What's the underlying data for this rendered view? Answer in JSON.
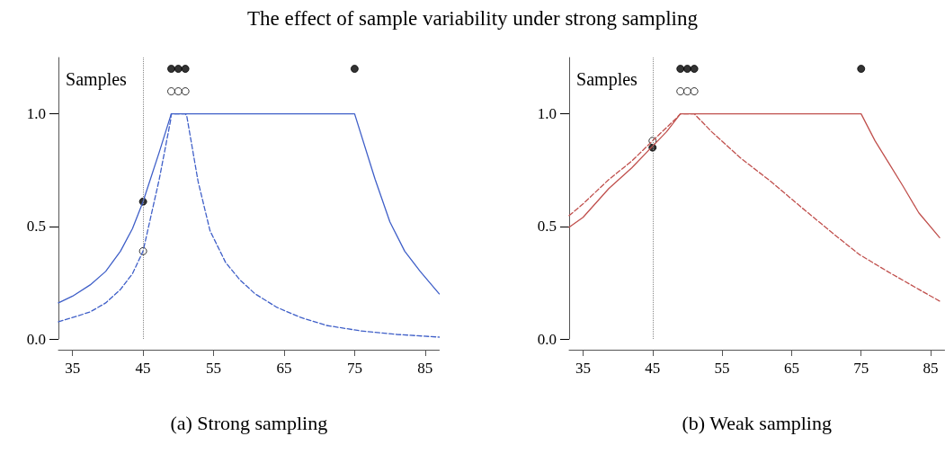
{
  "chart_data": [
    {
      "type": "line",
      "title": "The effect of sample variability under strong sampling",
      "xlabel": "(a) Strong sampling",
      "xlim": [
        33,
        87
      ],
      "xticks": [
        35,
        45,
        55,
        65,
        75,
        85
      ],
      "ylim": [
        0,
        1.25
      ],
      "yticks": [
        {
          "value": 0,
          "label": "0.0"
        },
        {
          "value": 0.5,
          "label": "0.5"
        },
        {
          "value": 1,
          "label": "1.0"
        }
      ],
      "grid": false,
      "annotations": [
        "Samples"
      ],
      "ref_lines": [
        {
          "axis": "x",
          "value": 45,
          "color": "#888888",
          "line_style": "dotted"
        }
      ],
      "series": [
        {
          "line_style": "solid",
          "color": "#3f5fc8",
          "x": [
            33,
            35,
            37.5,
            39.7,
            41.8,
            43.5,
            45,
            47.3,
            49,
            75,
            77.9,
            80,
            82.1,
            84.3,
            87
          ],
          "values": [
            0.16,
            0.19,
            0.24,
            0.3,
            0.39,
            0.49,
            0.61,
            0.83,
            1,
            1,
            0.71,
            0.52,
            0.39,
            0.3,
            0.2
          ]
        },
        {
          "line_style": "dashed",
          "color": "#3f5fc8",
          "x": [
            33,
            35,
            37.5,
            39.7,
            41.8,
            43.5,
            45,
            47.3,
            48.9,
            49,
            51,
            51.2,
            52.8,
            54.5,
            56.7,
            58.8,
            60.9,
            64,
            67.3,
            71,
            75.8,
            81,
            87
          ],
          "values": [
            0.076,
            0.095,
            0.12,
            0.16,
            0.22,
            0.29,
            0.39,
            0.71,
            0.97,
            1,
            1,
            0.99,
            0.7,
            0.48,
            0.34,
            0.26,
            0.2,
            0.14,
            0.096,
            0.06,
            0.036,
            0.02,
            0.008
          ]
        },
        {
          "type": "scatter",
          "marker": "circle",
          "color": "#000000",
          "x": [
            45
          ],
          "values": [
            0.61
          ]
        },
        {
          "type": "scatter",
          "marker": "circle",
          "color": "#ffffff",
          "x": [
            45
          ],
          "values": [
            0.39
          ]
        },
        {
          "type": "scatter",
          "marker": "circle",
          "color": "#000000",
          "x": [
            49,
            50,
            51,
            75
          ],
          "values": [
            1.2,
            1.2,
            1.2,
            1.2
          ]
        },
        {
          "type": "scatter",
          "marker": "circle",
          "color": "#ffffff",
          "x": [
            49,
            50,
            51
          ],
          "values": [
            1.1,
            1.1,
            1.1
          ]
        }
      ]
    },
    {
      "type": "line",
      "xlabel": "(b) Weak sampling",
      "xlim": [
        33,
        87
      ],
      "xticks": [
        35,
        45,
        55,
        65,
        75,
        85
      ],
      "ylim": [
        0,
        1.25
      ],
      "yticks": [
        {
          "value": 0,
          "label": "0.0"
        },
        {
          "value": 0.5,
          "label": "0.5"
        },
        {
          "value": 1,
          "label": "1.0"
        }
      ],
      "grid": false,
      "annotations": [
        "Samples"
      ],
      "ref_lines": [
        {
          "axis": "x",
          "value": 45,
          "color": "#888888",
          "line_style": "dotted"
        }
      ],
      "series": [
        {
          "line_style": "solid",
          "color": "#c0504d",
          "x": [
            33,
            35,
            38.7,
            42,
            45,
            47,
            49,
            75,
            77,
            79,
            81,
            83.3,
            86.3
          ],
          "values": [
            0.496,
            0.54,
            0.668,
            0.76,
            0.856,
            0.92,
            1,
            1,
            0.88,
            0.78,
            0.68,
            0.56,
            0.45
          ]
        },
        {
          "line_style": "dashed",
          "color": "#c0504d",
          "x": [
            33,
            35,
            38.7,
            42,
            45,
            48.4,
            49,
            51,
            53.5,
            57.8,
            62,
            66.2,
            70.5,
            74.7,
            79,
            83.3,
            86.3
          ],
          "values": [
            0.548,
            0.6,
            0.708,
            0.79,
            0.88,
            0.98,
            1,
            1,
            0.92,
            0.8,
            0.7,
            0.59,
            0.48,
            0.376,
            0.296,
            0.22,
            0.168
          ]
        },
        {
          "type": "scatter",
          "marker": "circle",
          "color": "#000000",
          "x": [
            45
          ],
          "values": [
            0.85
          ]
        },
        {
          "type": "scatter",
          "marker": "circle",
          "color": "#ffffff",
          "x": [
            45
          ],
          "values": [
            0.88
          ]
        },
        {
          "type": "scatter",
          "marker": "circle",
          "color": "#000000",
          "x": [
            49,
            50,
            51,
            75
          ],
          "values": [
            1.2,
            1.2,
            1.2,
            1.2
          ]
        },
        {
          "type": "scatter",
          "marker": "circle",
          "color": "#ffffff",
          "x": [
            49,
            50,
            51
          ],
          "values": [
            1.1,
            1.1,
            1.1
          ]
        }
      ]
    }
  ]
}
